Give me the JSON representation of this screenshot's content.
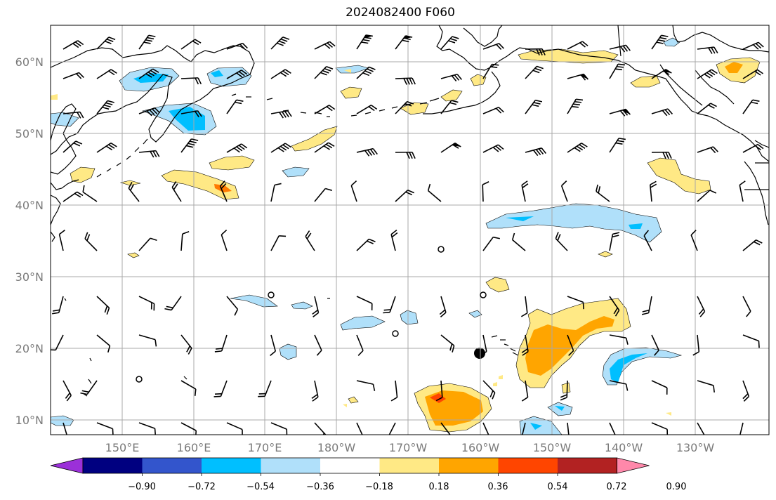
{
  "title": "2024082400 F060",
  "map": {
    "lat_labels": [
      "60°N",
      "50°N",
      "40°N",
      "30°N",
      "20°N",
      "10°N"
    ],
    "lon_labels": [
      "150°E",
      "160°E",
      "170°E",
      "180°W",
      "170°W",
      "160°W",
      "150°W",
      "140°W",
      "130°W"
    ]
  },
  "colorbar": {
    "colors": [
      "#9b30d9",
      "#000080",
      "#3355cc",
      "#00bfff",
      "#b0e0fa",
      "#ffffff",
      "#ffe985",
      "#ffa500",
      "#ff4500",
      "#b22222",
      "#ff88aa"
    ],
    "labels": [
      "−0.90",
      "−0.72",
      "−0.54",
      "−0.36",
      "−0.18",
      "0.18",
      "0.36",
      "0.54",
      "0.72",
      "0.90"
    ]
  },
  "colors": {
    "light_blue": "#b0e0fa",
    "blue": "#00bfff",
    "yellow": "#ffe985",
    "orange": "#ffa500",
    "red_orange": "#ff4500"
  }
}
